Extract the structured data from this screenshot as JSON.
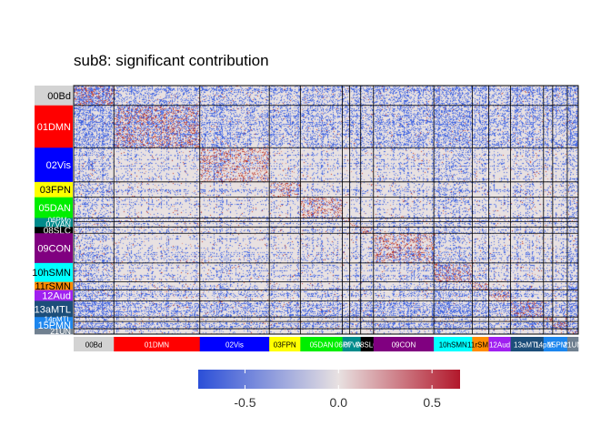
{
  "chart_data": {
    "type": "heatmap",
    "title": "sub8: significant contribution",
    "networks": [
      {
        "label": "00Bd",
        "color": "#d3d3d3",
        "size": 22
      },
      {
        "label": "01DMN",
        "color": "#ff0000",
        "size": 47
      },
      {
        "label": "02Vis",
        "color": "#0000ff",
        "size": 38
      },
      {
        "label": "03FPN",
        "color": "#ffff00",
        "size": 17
      },
      {
        "label": "05DAN",
        "color": "#00ee00",
        "size": 23
      },
      {
        "label": "06PMo",
        "color": "#008b8b",
        "size": 4
      },
      {
        "label": "07VAN",
        "color": "#008b8b",
        "size": 6
      },
      {
        "label": "08SLC",
        "color": "#000000",
        "size": 7
      },
      {
        "label": "09CON",
        "color": "#800080",
        "size": 33
      },
      {
        "label": "10hSMN",
        "color": "#00ffff",
        "size": 21
      },
      {
        "label": "11rSMN",
        "color": "#ff8c00",
        "size": 9
      },
      {
        "label": "12Aud",
        "color": "#a020f0",
        "size": 12
      },
      {
        "label": "13aMTL",
        "color": "#1c4e7a",
        "size": 18
      },
      {
        "label": "14pMTL",
        "color": "#1c86ee",
        "size": 5
      },
      {
        "label": "15PMN",
        "color": "#1c86ee",
        "size": 8
      },
      {
        "label": "21UN",
        "color": "#708090",
        "size": 6
      }
    ],
    "colorbar": {
      "low_color": "#2b4fd8",
      "mid_color": "#e8e1e1",
      "high_color": "#b2182b",
      "range": [
        -0.75,
        0.65
      ],
      "ticks": [
        {
          "value": -0.5,
          "label": "-0.5"
        },
        {
          "value": 0.0,
          "label": "0.0"
        },
        {
          "value": 0.5,
          "label": "0.5"
        }
      ]
    },
    "legend_placement": "bottom",
    "grid": false
  }
}
